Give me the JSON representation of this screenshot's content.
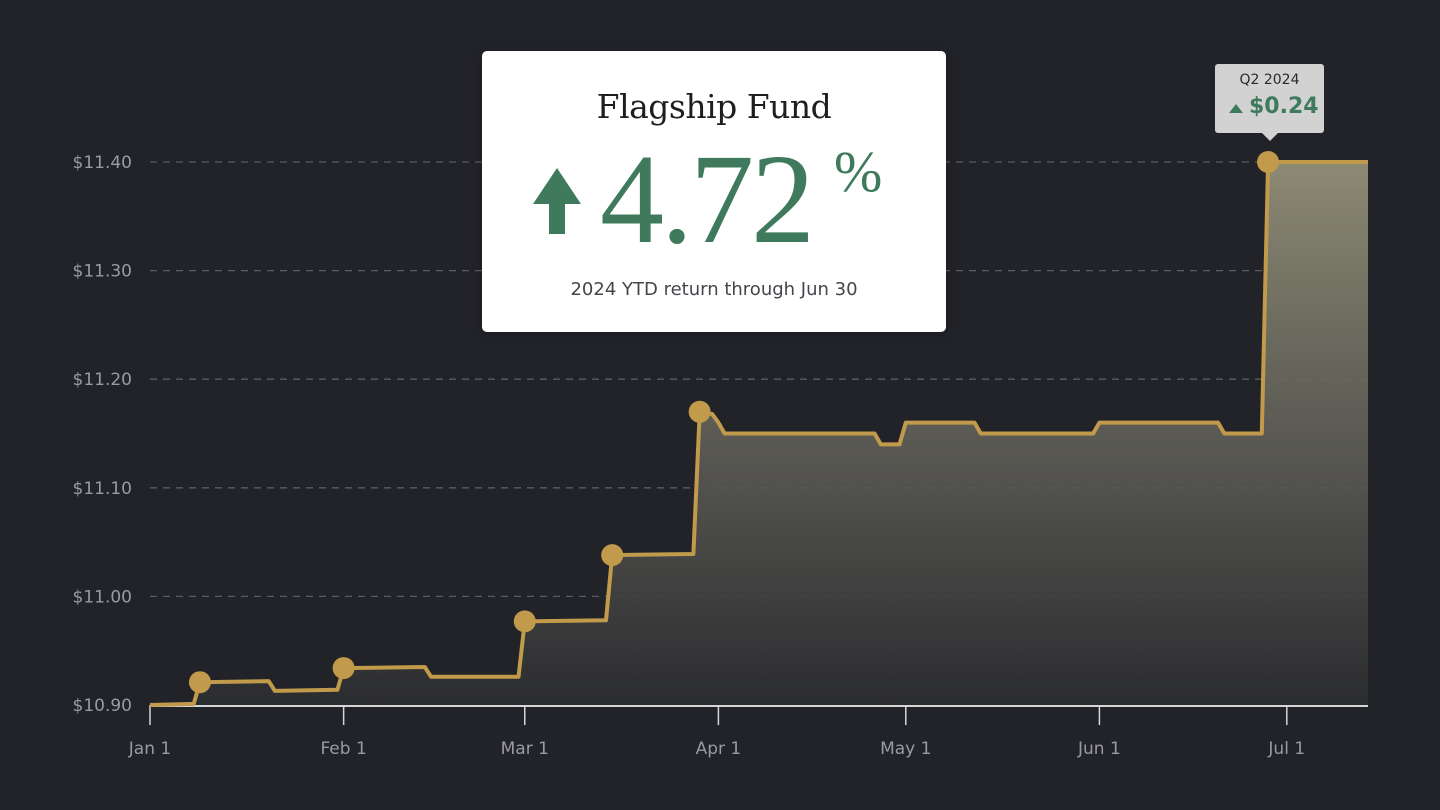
{
  "chart_data": {
    "type": "area",
    "series": [
      {
        "values": [
          {
            "x": "2024-01-01",
            "y": 10.9
          },
          {
            "x": "2024-01-08",
            "y": 10.901
          },
          {
            "x": "2024-01-09",
            "y": 10.921
          },
          {
            "x": "2024-01-20",
            "y": 10.922
          },
          {
            "x": "2024-01-21",
            "y": 10.913
          },
          {
            "x": "2024-01-31",
            "y": 10.914
          },
          {
            "x": "2024-02-01",
            "y": 10.934
          },
          {
            "x": "2024-02-14",
            "y": 10.935
          },
          {
            "x": "2024-02-15",
            "y": 10.926
          },
          {
            "x": "2024-02-29",
            "y": 10.926
          },
          {
            "x": "2024-03-01",
            "y": 10.977
          },
          {
            "x": "2024-03-14",
            "y": 10.978
          },
          {
            "x": "2024-03-15",
            "y": 11.038
          },
          {
            "x": "2024-03-28",
            "y": 11.039
          },
          {
            "x": "2024-03-29",
            "y": 11.17
          },
          {
            "x": "2024-03-31",
            "y": 11.168
          },
          {
            "x": "2024-04-01",
            "y": 11.16
          },
          {
            "x": "2024-04-02",
            "y": 11.15
          },
          {
            "x": "2024-04-26",
            "y": 11.15
          },
          {
            "x": "2024-04-27",
            "y": 11.14
          },
          {
            "x": "2024-04-30",
            "y": 11.14
          },
          {
            "x": "2024-05-01",
            "y": 11.16
          },
          {
            "x": "2024-05-12",
            "y": 11.16
          },
          {
            "x": "2024-05-13",
            "y": 11.15
          },
          {
            "x": "2024-05-31",
            "y": 11.15
          },
          {
            "x": "2024-06-01",
            "y": 11.16
          },
          {
            "x": "2024-06-20",
            "y": 11.16
          },
          {
            "x": "2024-06-21",
            "y": 11.15
          },
          {
            "x": "2024-06-27",
            "y": 11.15
          },
          {
            "x": "2024-06-28",
            "y": 11.4
          },
          {
            "x": "2024-07-14",
            "y": 11.4
          }
        ]
      }
    ],
    "markers": [
      {
        "x": "2024-01-09",
        "y": 10.921
      },
      {
        "x": "2024-02-01",
        "y": 10.934
      },
      {
        "x": "2024-03-01",
        "y": 10.977
      },
      {
        "x": "2024-03-15",
        "y": 11.038
      },
      {
        "x": "2024-03-29",
        "y": 11.17
      },
      {
        "x": "2024-06-28",
        "y": 11.4
      }
    ],
    "ylim": [
      10.9,
      11.4
    ],
    "yticks": [
      10.9,
      11.0,
      11.1,
      11.2,
      11.3,
      11.4
    ],
    "ytick_labels": [
      "$10.90",
      "$11.00",
      "$11.10",
      "$11.20",
      "$11.30",
      "$11.40"
    ],
    "xlim": [
      "2024-01-01",
      "2024-07-14"
    ],
    "xticks": [
      "2024-01-01",
      "2024-02-01",
      "2024-03-01",
      "2024-04-01",
      "2024-05-01",
      "2024-06-01",
      "2024-07-01"
    ],
    "xtick_labels": [
      "Jan 1",
      "Feb 1",
      "Mar 1",
      "Apr 1",
      "May 1",
      "Jun 1",
      "Jul 1"
    ],
    "grid": "horizontal dashed",
    "colors": {
      "line": "#c19a4b",
      "area_top": "#8c8a73",
      "background": "#222328",
      "accent": "#3f7a5c"
    }
  },
  "card": {
    "title": "Flagship Fund",
    "value": "4.72",
    "unit": "%",
    "caption": "2024 YTD return through Jun 30",
    "arrow_icon": "up-arrow-icon"
  },
  "badge": {
    "label": "Q2 2024",
    "value": "$0.24",
    "arrow_icon": "triangle-up-icon"
  }
}
